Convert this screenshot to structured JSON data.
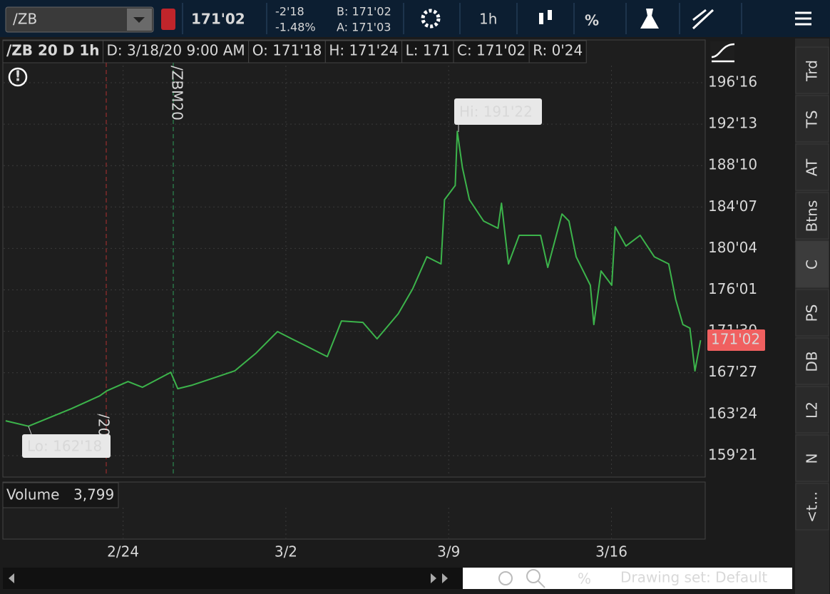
{
  "toolbar": {
    "symbol": "/ZB",
    "last": "171'02",
    "change": "-2'18",
    "change_pct": "-1.48%",
    "bid": "B: 171'02",
    "ask": "A: 171'03",
    "timeframe": "1h"
  },
  "info_bar": [
    "/ZB 20 D 1h",
    "D: 3/18/20 9:00 AM",
    "O: 171'18",
    "H: 171'24",
    "L: 171",
    "C: 171'02",
    "R: 0'24"
  ],
  "chart_data": {
    "type": "line",
    "color": "#3cb44b",
    "x": [
      -5.05,
      -4.07,
      -2.23,
      -1.01,
      -0.7,
      0.21,
      0.83,
      2.05,
      2.35,
      2.97,
      3.88,
      4.8,
      5.72,
      6.64,
      7.25,
      7.86,
      8.47,
      8.78,
      9.39,
      10.31,
      10.92,
      11.83,
      12.45,
      13.06,
      13.67,
      13.82,
      14.28,
      14.37,
      14.59,
      14.89,
      15.5,
      16.12,
      16.27,
      16.57,
      17.03,
      17.95,
      18.26,
      18.87,
      19.17,
      19.48,
      20.09,
      20.24,
      20.55,
      21.01,
      21.16,
      21.62,
      22.23,
      22.84,
      23.46,
      23.76,
      24.07,
      24.37,
      24.59,
      24.83
    ],
    "values": [
      163.1,
      162.56,
      164.29,
      165.56,
      166.06,
      166.97,
      166.41,
      167.89,
      166.27,
      166.62,
      167.32,
      168.03,
      169.79,
      171.91,
      171.2,
      170.5,
      169.79,
      169.44,
      172.96,
      172.82,
      171.2,
      173.67,
      176.13,
      179.3,
      178.6,
      184.94,
      186.35,
      191.69,
      188.11,
      184.94,
      182.83,
      182.12,
      184.59,
      178.6,
      181.42,
      181.42,
      178.25,
      183.53,
      182.83,
      179.3,
      176.49,
      172.61,
      177.9,
      176.49,
      182.26,
      180.36,
      181.42,
      179.3,
      178.6,
      175.08,
      172.61,
      172.26,
      168.03,
      171.06
    ],
    "xlim": [
      -5.14,
      25.0
    ],
    "xticks": [
      {
        "value": 0,
        "label": "2/24"
      },
      {
        "value": 7,
        "label": "3/2"
      },
      {
        "value": 14,
        "label": "3/9"
      },
      {
        "value": 21,
        "label": "3/16"
      }
    ],
    "ylim": [
      157.61,
      198.19
    ],
    "yticks": [
      {
        "value": 196.5,
        "label": "196'16"
      },
      {
        "value": 192.40625,
        "label": "192'13"
      },
      {
        "value": 188.3125,
        "label": "188'10"
      },
      {
        "value": 184.21875,
        "label": "184'07"
      },
      {
        "value": 180.125,
        "label": "180'04"
      },
      {
        "value": 176.03125,
        "label": "176'01"
      },
      {
        "value": 171.9375,
        "label": "171'30"
      },
      {
        "value": 167.84375,
        "label": "167'27"
      },
      {
        "value": 163.75,
        "label": "163'24"
      },
      {
        "value": 159.65625,
        "label": "159'21"
      }
    ],
    "grid": true,
    "last_price": {
      "value": 171.0625,
      "label": "171'02"
    },
    "annotations": {
      "high": "Hi: 191'22",
      "low": "Lo: 162'18",
      "markers": [
        "/20",
        "/ZBM20"
      ]
    }
  },
  "volume": {
    "title": "Volume",
    "value": "3,799"
  },
  "sidebar": [
    "Trd",
    "TS",
    "AT",
    "Btns",
    "C",
    "PS",
    "DB",
    "L2",
    "N",
    "<t..."
  ],
  "footer": {
    "drawing_set": "Drawing set: Default"
  }
}
